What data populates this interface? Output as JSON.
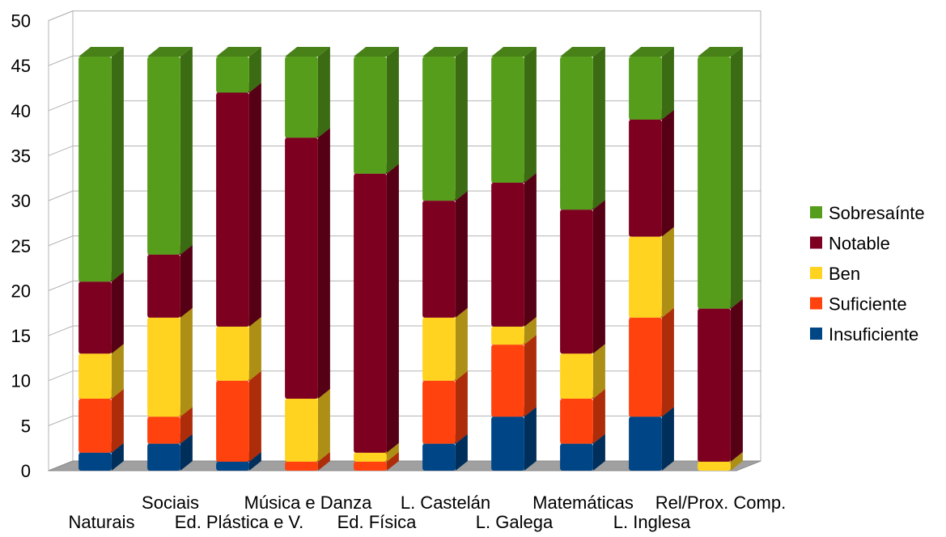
{
  "chart_data": {
    "type": "bar",
    "stacked": true,
    "three_d": true,
    "categories": [
      "Naturais",
      "Sociais",
      "Ed. Plástica e V.",
      "Música e Danza",
      "Ed. Física",
      "L. Castelán",
      "L. Galega",
      "Matemáticas",
      "L. Inglesa",
      "Rel/Prox. Comp."
    ],
    "series": [
      {
        "name": "Insuficiente",
        "color": "#004586",
        "values": [
          2,
          3,
          1,
          0,
          0,
          3,
          6,
          3,
          6,
          0
        ]
      },
      {
        "name": "Suficiente",
        "color": "#ff420e",
        "values": [
          6,
          3,
          9,
          1,
          1,
          7,
          8,
          5,
          11,
          0
        ]
      },
      {
        "name": "Ben",
        "color": "#ffd320",
        "values": [
          5,
          11,
          6,
          7,
          1,
          7,
          2,
          5,
          9,
          1
        ]
      },
      {
        "name": "Notable",
        "color": "#7e0021",
        "values": [
          8,
          7,
          26,
          29,
          31,
          13,
          16,
          16,
          13,
          17
        ]
      },
      {
        "name": "Sobresaínte",
        "color": "#579d1c",
        "values": [
          25,
          22,
          4,
          9,
          13,
          16,
          14,
          17,
          7,
          28
        ]
      }
    ],
    "ylim": [
      0,
      50
    ],
    "yticks": [
      "0",
      "5",
      "10",
      "15",
      "20",
      "25",
      "30",
      "35",
      "40",
      "45",
      "50"
    ],
    "grid": true,
    "legend_position": "right",
    "title": "",
    "xlabel": "",
    "ylabel": ""
  }
}
